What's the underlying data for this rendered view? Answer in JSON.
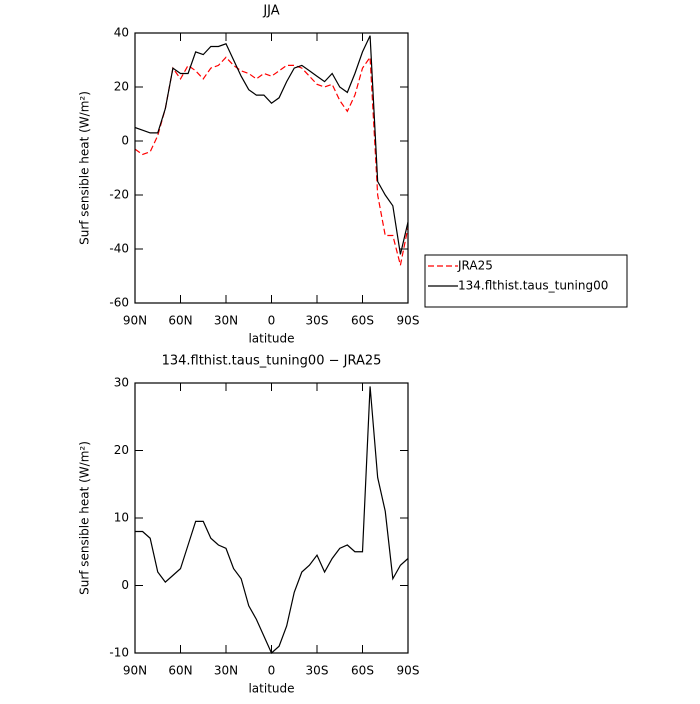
{
  "chart_data": [
    {
      "type": "line",
      "title": "JJA",
      "xlabel": "latitude",
      "ylabel": "Surf sensible heat (W/m²)",
      "x": [
        90,
        85,
        80,
        75,
        70,
        65,
        60,
        55,
        50,
        45,
        40,
        35,
        30,
        25,
        20,
        15,
        10,
        5,
        0,
        -5,
        -10,
        -15,
        -20,
        -25,
        -30,
        -35,
        -40,
        -45,
        -50,
        -55,
        -60,
        -65,
        -70,
        -75,
        -80,
        -85,
        -90
      ],
      "series": [
        {
          "name": "JRA25",
          "color": "#ff0000",
          "dashed": true,
          "values": [
            -3,
            -5,
            -4,
            2,
            12,
            27,
            23,
            28,
            26,
            23,
            27,
            28,
            31,
            28,
            26,
            25,
            23,
            25,
            24,
            26,
            28,
            28,
            27,
            24,
            21,
            20,
            21,
            15,
            11,
            17,
            27,
            31,
            -20,
            -35,
            -35,
            -46,
            -32
          ]
        },
        {
          "name": "134.flthist.taus_tuning00",
          "color": "#000000",
          "dashed": false,
          "values": [
            5,
            4,
            3,
            3,
            12,
            27,
            25,
            25,
            33,
            32,
            35,
            35,
            36,
            30,
            24,
            19,
            17,
            17,
            14,
            16,
            22,
            27,
            28,
            26,
            24,
            22,
            25,
            20,
            18,
            25,
            33,
            39,
            -15,
            -20,
            -24,
            -42,
            -30
          ]
        }
      ],
      "xlim": [
        90,
        -90
      ],
      "xticks": [
        {
          "value": 90,
          "label": "90N"
        },
        {
          "value": 60,
          "label": "60N"
        },
        {
          "value": 30,
          "label": "30N"
        },
        0,
        {
          "value": -30,
          "label": "30S"
        },
        {
          "value": -60,
          "label": "60S"
        },
        {
          "value": -90,
          "label": "90S"
        }
      ],
      "ylim": [
        -60,
        40
      ],
      "yticks": [
        -60,
        -40,
        -20,
        0,
        20,
        40
      ],
      "legend": "right"
    },
    {
      "type": "line",
      "title": "134.flthist.taus_tuning00 − JRA25",
      "xlabel": "latitude",
      "ylabel": "Surf sensible heat (W/m²)",
      "x": [
        90,
        85,
        80,
        75,
        70,
        65,
        60,
        55,
        50,
        45,
        40,
        35,
        30,
        25,
        20,
        15,
        10,
        5,
        0,
        -5,
        -10,
        -15,
        -20,
        -25,
        -30,
        -35,
        -40,
        -45,
        -50,
        -55,
        -60,
        -65,
        -70,
        -75,
        -80,
        -85,
        -90
      ],
      "color": "#000000",
      "values": [
        8,
        8,
        7,
        2,
        0.5,
        1.5,
        2.5,
        6,
        9.5,
        9.5,
        7,
        6,
        5.5,
        2.5,
        1,
        -3,
        -5,
        -7.5,
        -10,
        -9,
        -6,
        -1,
        2,
        3,
        4.5,
        2,
        4,
        5.5,
        6,
        5,
        5,
        29.5,
        16,
        11,
        1,
        3,
        4
      ],
      "xlim": [
        90,
        -90
      ],
      "xticks": [
        {
          "value": 90,
          "label": "90N"
        },
        {
          "value": 60,
          "label": "60N"
        },
        {
          "value": 30,
          "label": "30N"
        },
        0,
        {
          "value": -30,
          "label": "30S"
        },
        {
          "value": -60,
          "label": "60S"
        },
        {
          "value": -90,
          "label": "90S"
        }
      ],
      "ylim": [
        -10,
        30
      ],
      "yticks": [
        -10,
        0,
        10,
        20,
        30
      ]
    }
  ]
}
